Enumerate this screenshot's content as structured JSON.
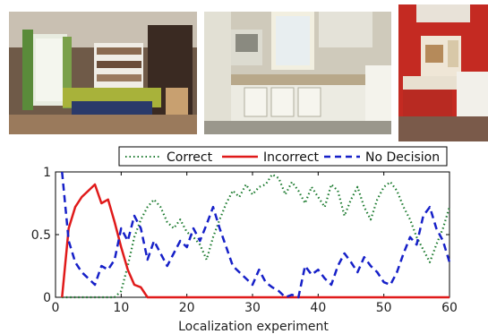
{
  "colors": {
    "correct": "#1b7a2e",
    "incorrect": "#e01a1a",
    "no_decision": "#1620c8"
  },
  "chart_data": {
    "type": "line",
    "title": "",
    "xlabel": "Localization experiment",
    "ylabel": "",
    "xlim": [
      0,
      60
    ],
    "ylim": [
      0,
      1
    ],
    "xticks": [
      "0",
      "10",
      "20",
      "30",
      "40",
      "50",
      "60"
    ],
    "yticks": [
      "0",
      "0.5",
      "1"
    ],
    "legend_position": "top",
    "grid": false,
    "series": [
      {
        "name": "Correct",
        "style": "dotted",
        "x": [
          1,
          2,
          3,
          4,
          5,
          6,
          7,
          8,
          9,
          10,
          11,
          12,
          13,
          14,
          15,
          16,
          17,
          18,
          19,
          20,
          21,
          22,
          23,
          24,
          25,
          26,
          27,
          28,
          29,
          30,
          31,
          32,
          33,
          34,
          35,
          36,
          37,
          38,
          39,
          40,
          41,
          42,
          43,
          44,
          45,
          46,
          47,
          48,
          49,
          50,
          51,
          52,
          53,
          54,
          55,
          56,
          57,
          58,
          59,
          60
        ],
        "y": [
          0,
          0,
          0,
          0,
          0,
          0,
          0,
          0,
          0,
          0.05,
          0.25,
          0.48,
          0.62,
          0.72,
          0.78,
          0.72,
          0.6,
          0.55,
          0.62,
          0.52,
          0.48,
          0.42,
          0.3,
          0.48,
          0.62,
          0.75,
          0.85,
          0.8,
          0.9,
          0.82,
          0.88,
          0.9,
          0.98,
          0.95,
          0.82,
          0.92,
          0.85,
          0.75,
          0.88,
          0.8,
          0.72,
          0.9,
          0.85,
          0.65,
          0.78,
          0.88,
          0.72,
          0.62,
          0.78,
          0.88,
          0.92,
          0.85,
          0.72,
          0.62,
          0.48,
          0.38,
          0.28,
          0.42,
          0.55,
          0.72
        ]
      },
      {
        "name": "Incorrect",
        "style": "solid",
        "x": [
          1,
          2,
          3,
          4,
          5,
          6,
          7,
          8,
          9,
          10,
          11,
          12,
          13,
          14,
          15,
          20,
          30,
          40,
          50,
          60
        ],
        "y": [
          0,
          0.55,
          0.72,
          0.8,
          0.85,
          0.9,
          0.75,
          0.78,
          0.6,
          0.4,
          0.22,
          0.1,
          0.08,
          0,
          0,
          0,
          0,
          0,
          0,
          0
        ]
      },
      {
        "name": "No Decision",
        "style": "dashed",
        "x": [
          1,
          2,
          3,
          4,
          5,
          6,
          7,
          8,
          9,
          10,
          11,
          12,
          13,
          14,
          15,
          16,
          17,
          18,
          19,
          20,
          21,
          22,
          23,
          24,
          25,
          26,
          27,
          28,
          29,
          30,
          31,
          32,
          33,
          34,
          35,
          36,
          37,
          38,
          39,
          40,
          41,
          42,
          43,
          44,
          45,
          46,
          47,
          48,
          49,
          50,
          51,
          52,
          53,
          54,
          55,
          56,
          57,
          58,
          59,
          60
        ],
        "y": [
          1,
          0.45,
          0.28,
          0.2,
          0.15,
          0.1,
          0.25,
          0.22,
          0.3,
          0.55,
          0.45,
          0.65,
          0.55,
          0.3,
          0.45,
          0.35,
          0.25,
          0.35,
          0.45,
          0.4,
          0.55,
          0.45,
          0.58,
          0.72,
          0.55,
          0.4,
          0.25,
          0.2,
          0.15,
          0.1,
          0.22,
          0.12,
          0.08,
          0.05,
          0,
          0.02,
          0,
          0.25,
          0.18,
          0.22,
          0.15,
          0.1,
          0.25,
          0.35,
          0.28,
          0.2,
          0.32,
          0.25,
          0.2,
          0.12,
          0.1,
          0.2,
          0.35,
          0.48,
          0.42,
          0.65,
          0.72,
          0.55,
          0.45,
          0.28
        ]
      }
    ]
  }
}
